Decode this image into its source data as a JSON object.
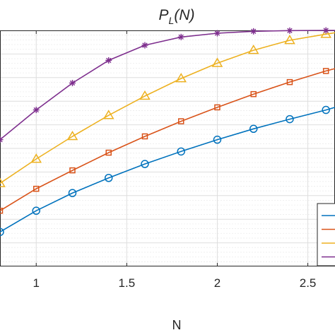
{
  "chart_data": {
    "type": "line",
    "title": "P_L(N)",
    "title_main": "P",
    "title_sub": "L",
    "title_tail": "(N)",
    "xlabel": "N",
    "ylabel": "",
    "xlim": [
      0.8,
      2.65
    ],
    "ylim": [
      0,
      1
    ],
    "x_ticks": [
      1,
      1.5,
      2,
      2.5
    ],
    "x_tick_labels": [
      "1",
      "1.5",
      "2",
      "2.5"
    ],
    "grid": true,
    "legend_placement": "bottom-right",
    "x": [
      0.8,
      1.0,
      1.2,
      1.4,
      1.6,
      1.8,
      2.0,
      2.2,
      2.4,
      2.6,
      2.65
    ],
    "series": [
      {
        "color": "#0072BD",
        "marker": "circle",
        "values": [
          0.146,
          0.236,
          0.311,
          0.375,
          0.434,
          0.487,
          0.537,
          0.583,
          0.624,
          0.663,
          0.674
        ]
      },
      {
        "color": "#D95319",
        "marker": "square",
        "values": [
          0.236,
          0.329,
          0.407,
          0.482,
          0.551,
          0.615,
          0.674,
          0.73,
          0.781,
          0.828,
          0.838
        ]
      },
      {
        "color": "#EDB120",
        "marker": "triangle",
        "values": [
          0.352,
          0.455,
          0.551,
          0.64,
          0.722,
          0.796,
          0.861,
          0.916,
          0.958,
          0.984,
          0.99
        ]
      },
      {
        "color": "#7E2F8E",
        "marker": "asterisk",
        "values": [
          0.537,
          0.663,
          0.777,
          0.873,
          0.937,
          0.972,
          0.988,
          0.996,
          0.999,
          1.0,
          1.0
        ]
      }
    ]
  }
}
